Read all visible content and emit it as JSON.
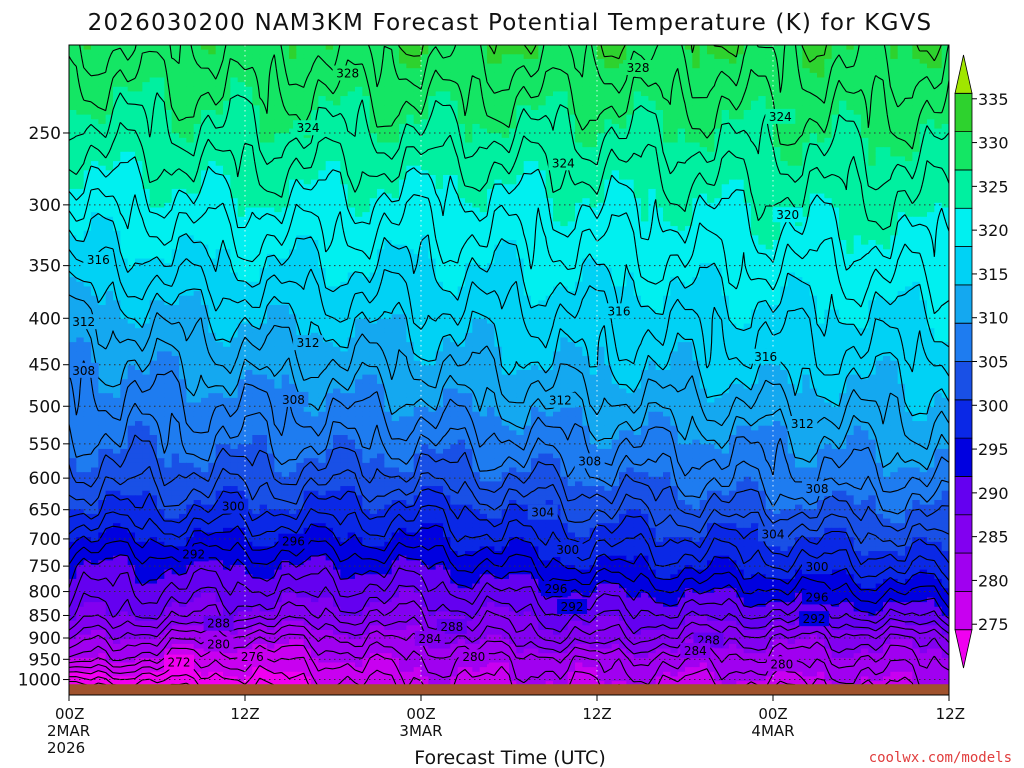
{
  "chart_data": {
    "type": "heatmap",
    "title": "2026030200 NAM3KM Forecast Potential Temperature (K) for KGVS",
    "xlabel": "Forecast Time (UTC)",
    "ylabel": "",
    "credit": "coolwx.com/models",
    "x_range_hours": [
      0,
      60
    ],
    "x_ticks": [
      {
        "hour": 0,
        "lines": [
          "00Z",
          "2MAR",
          "2026"
        ]
      },
      {
        "hour": 12,
        "lines": [
          "12Z"
        ]
      },
      {
        "hour": 24,
        "lines": [
          "00Z",
          "3MAR"
        ]
      },
      {
        "hour": 36,
        "lines": [
          "12Z"
        ]
      },
      {
        "hour": 48,
        "lines": [
          "00Z",
          "4MAR"
        ]
      },
      {
        "hour": 60,
        "lines": [
          "12Z"
        ]
      }
    ],
    "y_axis": {
      "scale": "log-pressure",
      "unit": "hPa",
      "range": [
        1040,
        200
      ]
    },
    "y_ticks": [
      250,
      300,
      350,
      400,
      450,
      500,
      550,
      600,
      650,
      700,
      750,
      800,
      850,
      900,
      950,
      1000
    ],
    "surface_pressure": 1012,
    "colorbar": {
      "min": 270,
      "max": 340,
      "tick_labels": [
        275,
        280,
        285,
        290,
        295,
        300,
        305,
        310,
        315,
        320,
        325,
        330,
        335
      ],
      "colors": [
        "#f000f0",
        "#c800f0",
        "#a000f0",
        "#8200f0",
        "#6400f0",
        "#0000e0",
        "#0a28e6",
        "#1950e6",
        "#1e7cf0",
        "#14a8f0",
        "#00d2f5",
        "#00f0f0",
        "#00f0a0",
        "#14e664",
        "#2ed22e",
        "#a0e600"
      ]
    },
    "profile_times_hours": [
      0,
      12,
      24,
      36,
      48,
      60
    ],
    "profile_pressures": [
      1000,
      950,
      900,
      850,
      800,
      750,
      700,
      650,
      600,
      550,
      500,
      450,
      400,
      350,
      300,
      250,
      200
    ],
    "profiles": [
      [
        272,
        280,
        284,
        288,
        290,
        292,
        296,
        300,
        303,
        305,
        307,
        309,
        312,
        316,
        320,
        325,
        330
      ],
      [
        273,
        276,
        280,
        286,
        289,
        292,
        296,
        300,
        303,
        306,
        308,
        311,
        314,
        318,
        322,
        326,
        330
      ],
      [
        278,
        280,
        283,
        286,
        289,
        292,
        296,
        299,
        303,
        306,
        309,
        312,
        315,
        318,
        321,
        326,
        331
      ],
      [
        279,
        281,
        286,
        289,
        292,
        296,
        299,
        302,
        305,
        308,
        311,
        314,
        316,
        319,
        322,
        326,
        331
      ],
      [
        278,
        281,
        284,
        289,
        293,
        297,
        300,
        304,
        307,
        309,
        312,
        315,
        317,
        320,
        323,
        327,
        331
      ],
      [
        280,
        282,
        285,
        291,
        295,
        299,
        302,
        305,
        308,
        311,
        313,
        315,
        318,
        321,
        324,
        327,
        331
      ]
    ],
    "contour_interval": 2,
    "contour_labels": [
      {
        "value": 272,
        "hour": 7.5,
        "pressure": 958
      },
      {
        "value": 276,
        "hour": 12.5,
        "pressure": 945
      },
      {
        "value": 280,
        "hour": 10.2,
        "pressure": 915
      },
      {
        "value": 288,
        "hour": 10.2,
        "pressure": 868
      },
      {
        "value": 292,
        "hour": 8.5,
        "pressure": 728
      },
      {
        "value": 296,
        "hour": 15.3,
        "pressure": 705
      },
      {
        "value": 300,
        "hour": 11.2,
        "pressure": 645
      },
      {
        "value": 304,
        "hour": 32.3,
        "pressure": 655
      },
      {
        "value": 308,
        "hour": 15.3,
        "pressure": 492
      },
      {
        "value": 312,
        "hour": 16.3,
        "pressure": 426
      },
      {
        "value": 316,
        "hour": 2.0,
        "pressure": 345
      },
      {
        "value": 312,
        "hour": 1.0,
        "pressure": 404
      },
      {
        "value": 308,
        "hour": 1.0,
        "pressure": 457
      },
      {
        "value": 324,
        "hour": 16.3,
        "pressure": 247
      },
      {
        "value": 328,
        "hour": 19.0,
        "pressure": 215
      },
      {
        "value": 328,
        "hour": 38.8,
        "pressure": 212
      },
      {
        "value": 324,
        "hour": 33.7,
        "pressure": 270
      },
      {
        "value": 316,
        "hour": 37.5,
        "pressure": 393
      },
      {
        "value": 312,
        "hour": 33.5,
        "pressure": 493
      },
      {
        "value": 308,
        "hour": 35.5,
        "pressure": 575
      },
      {
        "value": 300,
        "hour": 34.0,
        "pressure": 720
      },
      {
        "value": 296,
        "hour": 33.2,
        "pressure": 795
      },
      {
        "value": 292,
        "hour": 34.3,
        "pressure": 832
      },
      {
        "value": 288,
        "hour": 26.1,
        "pressure": 875
      },
      {
        "value": 284,
        "hour": 24.6,
        "pressure": 902
      },
      {
        "value": 280,
        "hour": 27.6,
        "pressure": 945
      },
      {
        "value": 288,
        "hour": 43.6,
        "pressure": 906
      },
      {
        "value": 284,
        "hour": 42.7,
        "pressure": 930
      },
      {
        "value": 280,
        "hour": 48.6,
        "pressure": 962
      },
      {
        "value": 320,
        "hour": 49.0,
        "pressure": 308
      },
      {
        "value": 316,
        "hour": 47.5,
        "pressure": 441
      },
      {
        "value": 312,
        "hour": 50.0,
        "pressure": 523
      },
      {
        "value": 308,
        "hour": 51.0,
        "pressure": 617
      },
      {
        "value": 304,
        "hour": 48.0,
        "pressure": 692
      },
      {
        "value": 300,
        "hour": 51.0,
        "pressure": 752
      },
      {
        "value": 296,
        "hour": 51.0,
        "pressure": 812
      },
      {
        "value": 292,
        "hour": 50.8,
        "pressure": 858
      },
      {
        "value": 324,
        "hour": 48.5,
        "pressure": 240
      }
    ]
  }
}
